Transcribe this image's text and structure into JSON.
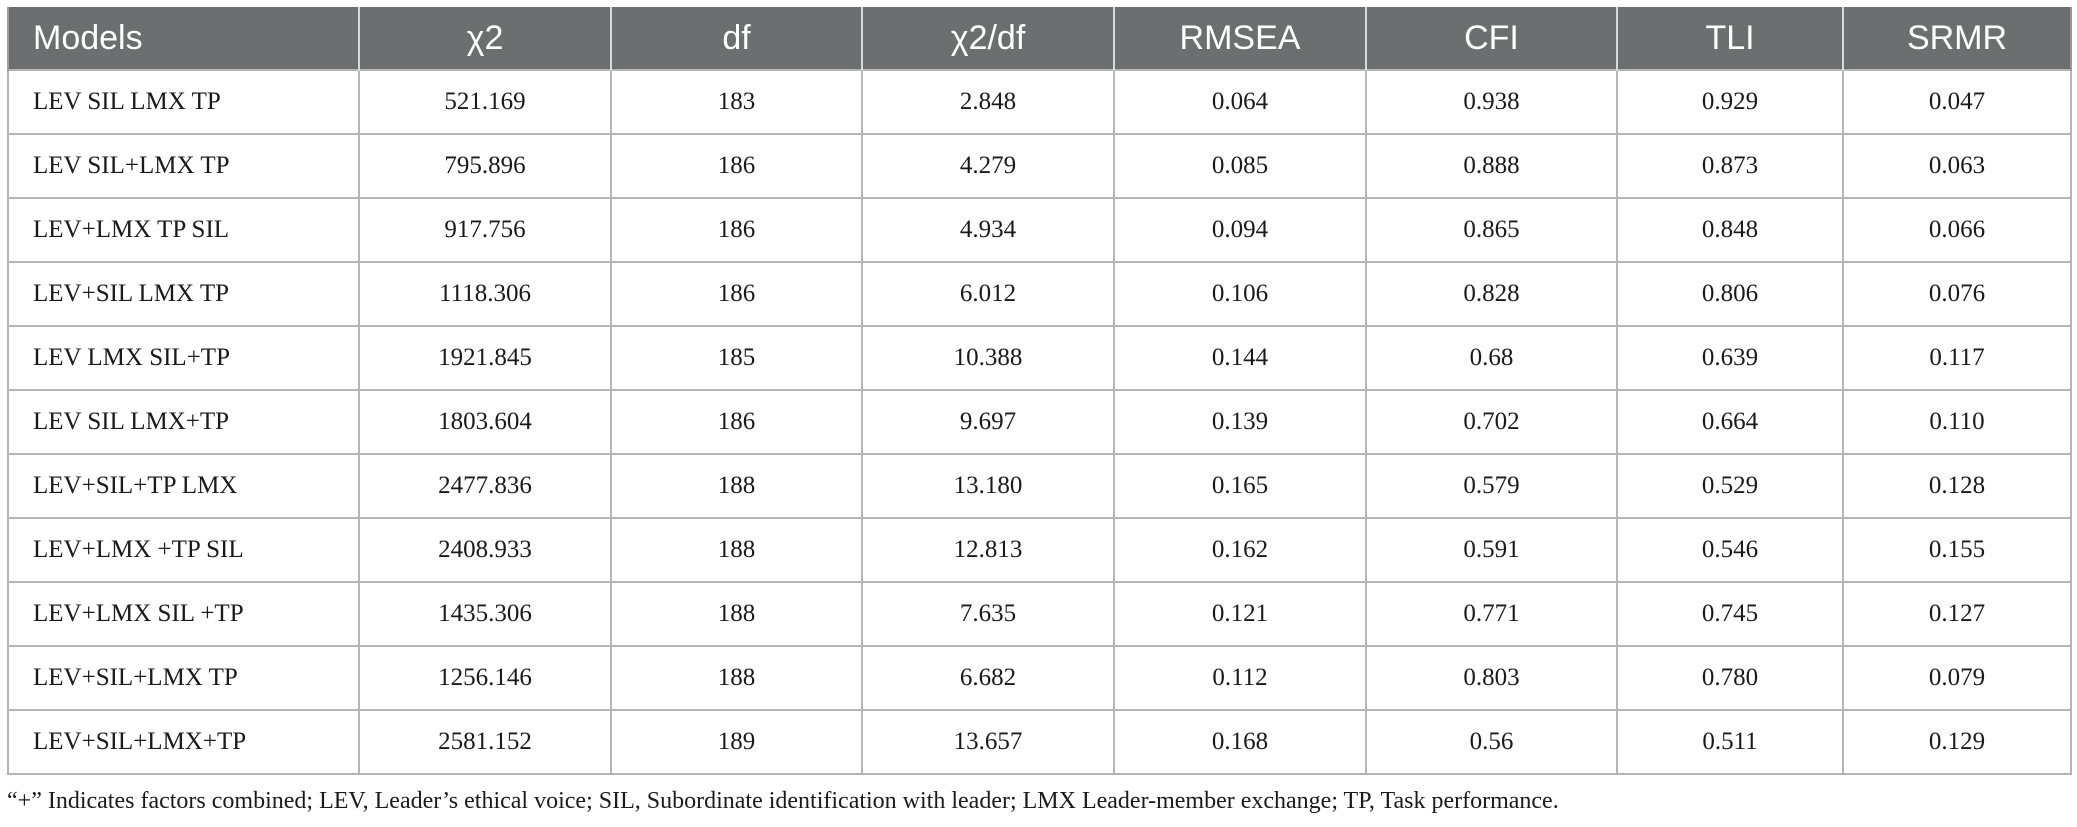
{
  "table": {
    "columns": [
      "Models",
      "χ2",
      "df",
      "χ2/df",
      "RMSEA",
      "CFI",
      "TLI",
      "SRMR"
    ],
    "rows": [
      [
        "LEV SIL LMX TP",
        "521.169",
        "183",
        "2.848",
        "0.064",
        "0.938",
        "0.929",
        "0.047"
      ],
      [
        "LEV SIL+LMX TP",
        "795.896",
        "186",
        "4.279",
        "0.085",
        "0.888",
        "0.873",
        "0.063"
      ],
      [
        "LEV+LMX TP SIL",
        "917.756",
        "186",
        "4.934",
        "0.094",
        "0.865",
        "0.848",
        "0.066"
      ],
      [
        "LEV+SIL LMX TP",
        "1118.306",
        "186",
        "6.012",
        "0.106",
        "0.828",
        "0.806",
        "0.076"
      ],
      [
        "LEV LMX SIL+TP",
        "1921.845",
        "185",
        "10.388",
        "0.144",
        "0.68",
        "0.639",
        "0.117"
      ],
      [
        "LEV SIL LMX+TP",
        "1803.604",
        "186",
        "9.697",
        "0.139",
        "0.702",
        "0.664",
        "0.110"
      ],
      [
        "LEV+SIL+TP LMX",
        "2477.836",
        "188",
        "13.180",
        "0.165",
        "0.579",
        "0.529",
        "0.128"
      ],
      [
        "LEV+LMX +TP SIL",
        "2408.933",
        "188",
        "12.813",
        "0.162",
        "0.591",
        "0.546",
        "0.155"
      ],
      [
        "LEV+LMX SIL +TP",
        "1435.306",
        "188",
        "7.635",
        "0.121",
        "0.771",
        "0.745",
        "0.127"
      ],
      [
        "LEV+SIL+LMX TP",
        "1256.146",
        "188",
        "6.682",
        "0.112",
        "0.803",
        "0.780",
        "0.079"
      ],
      [
        "LEV+SIL+LMX+TP",
        "2581.152",
        "189",
        "13.657",
        "0.168",
        "0.56",
        "0.511",
        "0.129"
      ]
    ]
  },
  "footnote": "“+” Indicates factors combined; LEV, Leader’s ethical voice; SIL, Subordinate identification with leader; LMX Leader-member exchange; TP, Task performance.",
  "colors": {
    "header_bg": "#6d6e70",
    "header_text": "#ffffff",
    "grid": "#b5b5b5"
  }
}
